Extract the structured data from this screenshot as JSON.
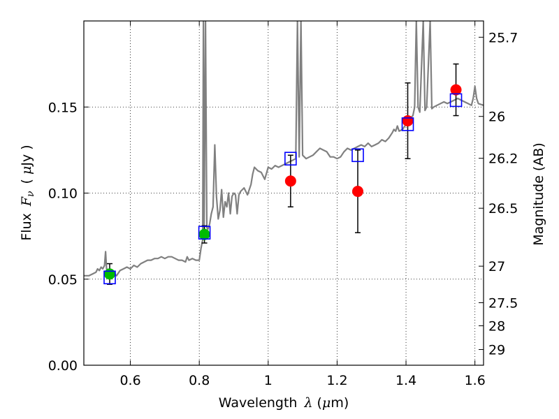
{
  "chart_data": {
    "type": "scatter",
    "title": "",
    "xlabel_parts": [
      "Wavelength",
      "λ",
      "(",
      "μ",
      "m)"
    ],
    "ylabel_parts": [
      "Flux",
      "F",
      "ν",
      "(",
      "μ",
      "Jy",
      ")"
    ],
    "y2label": "Magnitude (AB)",
    "xlim": [
      0.465,
      1.625
    ],
    "ylim": [
      0.0,
      0.2
    ],
    "grid": true,
    "x_ticks": [
      {
        "value": 0.6,
        "label": "0.6"
      },
      {
        "value": 0.8,
        "label": "0.8"
      },
      {
        "value": 1.0,
        "label": "1"
      },
      {
        "value": 1.2,
        "label": "1.2"
      },
      {
        "value": 1.4,
        "label": "1.4"
      },
      {
        "value": 1.6,
        "label": "1.6"
      }
    ],
    "y_ticks": [
      {
        "value": 0.0,
        "label": "0.00"
      },
      {
        "value": 0.05,
        "label": "0.05"
      },
      {
        "value": 0.1,
        "label": "0.10"
      },
      {
        "value": 0.15,
        "label": "0.15"
      }
    ],
    "y2_ticks": [
      {
        "mag": 25.7,
        "label": "25.7"
      },
      {
        "mag": 26.0,
        "label": "26"
      },
      {
        "mag": 26.2,
        "label": "26.2"
      },
      {
        "mag": 26.5,
        "label": "26.5"
      },
      {
        "mag": 27.0,
        "label": "27"
      },
      {
        "mag": 27.5,
        "label": "27.5"
      },
      {
        "mag": 28.0,
        "label": "28"
      },
      {
        "mag": 29.0,
        "label": "29"
      }
    ],
    "series": [
      {
        "name": "model spectrum",
        "kind": "line",
        "color": "#808080",
        "points": [
          [
            0.465,
            0.052
          ],
          [
            0.48,
            0.052
          ],
          [
            0.49,
            0.053
          ],
          [
            0.5,
            0.054
          ],
          [
            0.505,
            0.056
          ],
          [
            0.51,
            0.055
          ],
          [
            0.515,
            0.057
          ],
          [
            0.52,
            0.056
          ],
          [
            0.525,
            0.058
          ],
          [
            0.528,
            0.066
          ],
          [
            0.531,
            0.056
          ],
          [
            0.54,
            0.055
          ],
          [
            0.55,
            0.054
          ],
          [
            0.56,
            0.052
          ],
          [
            0.57,
            0.055
          ],
          [
            0.58,
            0.056
          ],
          [
            0.59,
            0.057
          ],
          [
            0.6,
            0.056
          ],
          [
            0.61,
            0.058
          ],
          [
            0.62,
            0.057
          ],
          [
            0.63,
            0.059
          ],
          [
            0.64,
            0.06
          ],
          [
            0.65,
            0.061
          ],
          [
            0.66,
            0.061
          ],
          [
            0.67,
            0.062
          ],
          [
            0.68,
            0.062
          ],
          [
            0.69,
            0.063
          ],
          [
            0.7,
            0.062
          ],
          [
            0.71,
            0.063
          ],
          [
            0.72,
            0.063
          ],
          [
            0.73,
            0.062
          ],
          [
            0.74,
            0.061
          ],
          [
            0.75,
            0.061
          ],
          [
            0.76,
            0.06
          ],
          [
            0.765,
            0.063
          ],
          [
            0.77,
            0.061
          ],
          [
            0.78,
            0.062
          ],
          [
            0.79,
            0.061
          ],
          [
            0.8,
            0.061
          ],
          [
            0.805,
            0.068
          ],
          [
            0.81,
            0.073
          ],
          [
            0.812,
            0.2
          ],
          [
            0.814,
            0.078
          ],
          [
            0.818,
            0.2
          ],
          [
            0.822,
            0.08
          ],
          [
            0.825,
            0.079
          ],
          [
            0.83,
            0.082
          ],
          [
            0.835,
            0.088
          ],
          [
            0.84,
            0.092
          ],
          [
            0.845,
            0.128
          ],
          [
            0.85,
            0.098
          ],
          [
            0.855,
            0.085
          ],
          [
            0.86,
            0.09
          ],
          [
            0.865,
            0.102
          ],
          [
            0.87,
            0.086
          ],
          [
            0.875,
            0.095
          ],
          [
            0.88,
            0.092
          ],
          [
            0.885,
            0.1
          ],
          [
            0.89,
            0.088
          ],
          [
            0.895,
            0.098
          ],
          [
            0.9,
            0.1
          ],
          [
            0.905,
            0.099
          ],
          [
            0.91,
            0.088
          ],
          [
            0.915,
            0.099
          ],
          [
            0.92,
            0.101
          ],
          [
            0.93,
            0.103
          ],
          [
            0.94,
            0.099
          ],
          [
            0.95,
            0.105
          ],
          [
            0.955,
            0.111
          ],
          [
            0.96,
            0.115
          ],
          [
            0.97,
            0.113
          ],
          [
            0.98,
            0.112
          ],
          [
            0.99,
            0.108
          ],
          [
            1.0,
            0.115
          ],
          [
            1.01,
            0.114
          ],
          [
            1.02,
            0.116
          ],
          [
            1.03,
            0.115
          ],
          [
            1.04,
            0.116
          ],
          [
            1.05,
            0.117
          ],
          [
            1.06,
            0.118
          ],
          [
            1.07,
            0.119
          ],
          [
            1.08,
            0.12
          ],
          [
            1.085,
            0.2
          ],
          [
            1.09,
            0.121
          ],
          [
            1.095,
            0.2
          ],
          [
            1.1,
            0.122
          ],
          [
            1.11,
            0.12
          ],
          [
            1.12,
            0.121
          ],
          [
            1.13,
            0.122
          ],
          [
            1.14,
            0.124
          ],
          [
            1.15,
            0.126
          ],
          [
            1.16,
            0.125
          ],
          [
            1.17,
            0.124
          ],
          [
            1.18,
            0.121
          ],
          [
            1.19,
            0.121
          ],
          [
            1.2,
            0.12
          ],
          [
            1.21,
            0.121
          ],
          [
            1.22,
            0.124
          ],
          [
            1.23,
            0.126
          ],
          [
            1.24,
            0.125
          ],
          [
            1.25,
            0.126
          ],
          [
            1.26,
            0.127
          ],
          [
            1.27,
            0.128
          ],
          [
            1.28,
            0.127
          ],
          [
            1.29,
            0.129
          ],
          [
            1.3,
            0.127
          ],
          [
            1.31,
            0.128
          ],
          [
            1.32,
            0.129
          ],
          [
            1.33,
            0.131
          ],
          [
            1.34,
            0.13
          ],
          [
            1.35,
            0.132
          ],
          [
            1.36,
            0.135
          ],
          [
            1.365,
            0.137
          ],
          [
            1.37,
            0.136
          ],
          [
            1.375,
            0.139
          ],
          [
            1.38,
            0.136
          ],
          [
            1.39,
            0.137
          ],
          [
            1.4,
            0.14
          ],
          [
            1.405,
            0.145
          ],
          [
            1.41,
            0.142
          ],
          [
            1.415,
            0.144
          ],
          [
            1.42,
            0.145
          ],
          [
            1.425,
            0.15
          ],
          [
            1.43,
            0.2
          ],
          [
            1.435,
            0.15
          ],
          [
            1.44,
            0.147
          ],
          [
            1.45,
            0.2
          ],
          [
            1.455,
            0.148
          ],
          [
            1.46,
            0.15
          ],
          [
            1.47,
            0.2
          ],
          [
            1.475,
            0.149
          ],
          [
            1.48,
            0.15
          ],
          [
            1.49,
            0.151
          ],
          [
            1.5,
            0.152
          ],
          [
            1.51,
            0.153
          ],
          [
            1.52,
            0.152
          ],
          [
            1.53,
            0.153
          ],
          [
            1.54,
            0.154
          ],
          [
            1.55,
            0.155
          ],
          [
            1.56,
            0.154
          ],
          [
            1.57,
            0.153
          ],
          [
            1.58,
            0.152
          ],
          [
            1.59,
            0.151
          ],
          [
            1.595,
            0.155
          ],
          [
            1.6,
            0.162
          ],
          [
            1.605,
            0.155
          ],
          [
            1.61,
            0.152
          ],
          [
            1.625,
            0.151
          ]
        ]
      },
      {
        "name": "green points",
        "kind": "points",
        "color": "#00bb00",
        "points": [
          {
            "x": 0.54,
            "y": 0.053,
            "err": 0.006
          },
          {
            "x": 0.815,
            "y": 0.076,
            "err": 0.005
          }
        ]
      },
      {
        "name": "red points",
        "kind": "points",
        "color": "#ff0000",
        "points": [
          {
            "x": 1.065,
            "y": 0.107,
            "err": 0.015
          },
          {
            "x": 1.26,
            "y": 0.101,
            "err": 0.024
          },
          {
            "x": 1.405,
            "y": 0.142,
            "err": 0.022
          },
          {
            "x": 1.545,
            "y": 0.16,
            "err": 0.015
          }
        ]
      },
      {
        "name": "blue squares",
        "kind": "squares",
        "color": "#0000ff",
        "points": [
          {
            "x": 0.54,
            "y": 0.051
          },
          {
            "x": 0.815,
            "y": 0.077
          },
          {
            "x": 1.065,
            "y": 0.12
          },
          {
            "x": 1.26,
            "y": 0.122
          },
          {
            "x": 1.405,
            "y": 0.14
          },
          {
            "x": 1.545,
            "y": 0.154
          }
        ]
      }
    ]
  }
}
